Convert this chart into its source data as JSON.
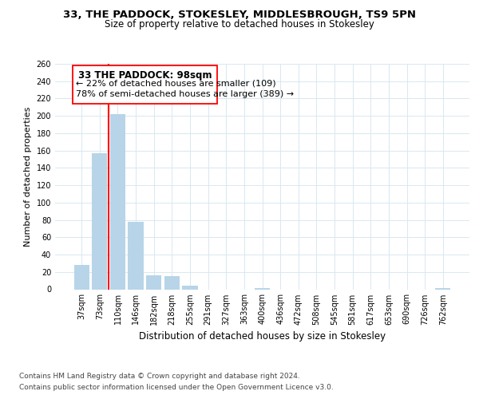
{
  "title": "33, THE PADDOCK, STOKESLEY, MIDDLESBROUGH, TS9 5PN",
  "subtitle": "Size of property relative to detached houses in Stokesley",
  "xlabel": "Distribution of detached houses by size in Stokesley",
  "ylabel": "Number of detached properties",
  "bar_labels": [
    "37sqm",
    "73sqm",
    "110sqm",
    "146sqm",
    "182sqm",
    "218sqm",
    "255sqm",
    "291sqm",
    "327sqm",
    "363sqm",
    "400sqm",
    "436sqm",
    "472sqm",
    "508sqm",
    "545sqm",
    "581sqm",
    "617sqm",
    "653sqm",
    "690sqm",
    "726sqm",
    "762sqm"
  ],
  "bar_values": [
    28,
    157,
    202,
    78,
    16,
    15,
    4,
    0,
    0,
    0,
    1,
    0,
    0,
    0,
    0,
    0,
    0,
    0,
    0,
    0,
    1
  ],
  "bar_color": "#b8d4e8",
  "red_line_bar_index": 2,
  "ylim": [
    0,
    260
  ],
  "yticks": [
    0,
    20,
    40,
    60,
    80,
    100,
    120,
    140,
    160,
    180,
    200,
    220,
    240,
    260
  ],
  "annotation_title": "33 THE PADDOCK: 98sqm",
  "annotation_line1": "← 22% of detached houses are smaller (109)",
  "annotation_line2": "78% of semi-detached houses are larger (389) →",
  "footer_line1": "Contains HM Land Registry data © Crown copyright and database right 2024.",
  "footer_line2": "Contains public sector information licensed under the Open Government Licence v3.0.",
  "title_fontsize": 9.5,
  "subtitle_fontsize": 8.5,
  "xlabel_fontsize": 8.5,
  "ylabel_fontsize": 8,
  "tick_fontsize": 7,
  "annotation_title_fontsize": 8.5,
  "annotation_text_fontsize": 8,
  "footer_fontsize": 6.5,
  "grid_color": "#d8e8f0",
  "background_color": "#ffffff"
}
